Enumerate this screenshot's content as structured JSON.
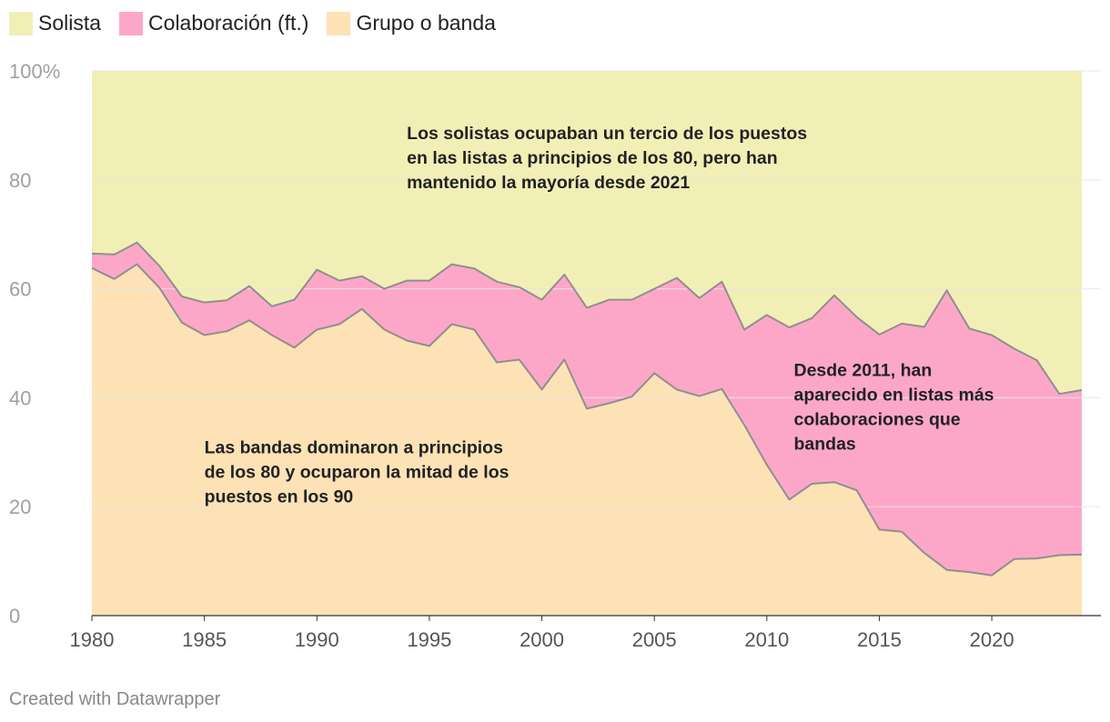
{
  "chart_data": {
    "type": "area",
    "stacked": true,
    "percent": true,
    "x": [
      1980,
      1981,
      1982,
      1983,
      1984,
      1985,
      1986,
      1987,
      1988,
      1989,
      1990,
      1991,
      1992,
      1993,
      1994,
      1995,
      1996,
      1997,
      1998,
      1999,
      2000,
      2001,
      2002,
      2003,
      2004,
      2005,
      2006,
      2007,
      2008,
      2009,
      2010,
      2011,
      2012,
      2013,
      2014,
      2015,
      2016,
      2017,
      2018,
      2019,
      2020,
      2021,
      2022,
      2023,
      2024
    ],
    "series": [
      {
        "name": "Grupo o banda",
        "color": "#fde2b6",
        "values": [
          63.8,
          61.8,
          64.5,
          60.2,
          53.8,
          51.5,
          52.2,
          54.2,
          51.5,
          49.2,
          52.5,
          53.5,
          56.3,
          52.5,
          50.5,
          49.5,
          53.5,
          52.5,
          46.5,
          47.0,
          41.5,
          47.0,
          38.0,
          39.0,
          40.2,
          44.5,
          41.5,
          40.3,
          41.6,
          35.0,
          27.7,
          21.3,
          24.2,
          24.5,
          23.0,
          15.8,
          15.4,
          11.5,
          8.4,
          8.0,
          7.4,
          10.4,
          10.5,
          11.1,
          11.2
        ]
      },
      {
        "name": "Colaboración (ft.)",
        "color": "#fda7c8",
        "values": [
          2.7,
          4.5,
          4.0,
          4.0,
          4.8,
          6.0,
          5.7,
          6.3,
          5.3,
          8.8,
          11.0,
          8.0,
          6.0,
          7.5,
          11.0,
          12.0,
          11.0,
          11.2,
          14.8,
          13.3,
          16.5,
          15.6,
          18.5,
          19.0,
          17.8,
          15.5,
          20.5,
          18.0,
          19.7,
          17.5,
          27.5,
          31.6,
          30.4,
          34.3,
          31.8,
          35.8,
          38.2,
          41.5,
          51.3,
          44.7,
          44.1,
          38.6,
          36.4,
          29.6,
          30.2
        ]
      },
      {
        "name": "Solista",
        "color": "#f2efb6",
        "values": [
          33.5,
          33.7,
          31.5,
          35.8,
          41.4,
          42.5,
          42.1,
          39.5,
          43.2,
          42.0,
          36.5,
          38.5,
          37.7,
          40.0,
          38.5,
          38.5,
          35.5,
          36.3,
          38.7,
          39.7,
          42.0,
          37.4,
          43.5,
          42.0,
          42.0,
          40.0,
          38.0,
          41.7,
          38.7,
          47.5,
          44.8,
          47.1,
          45.4,
          41.2,
          45.2,
          48.4,
          46.4,
          47.0,
          40.3,
          47.3,
          48.5,
          51.0,
          53.1,
          59.3,
          58.6
        ]
      }
    ],
    "legend": [
      "Solista",
      "Colaboración (ft.)",
      "Grupo o banda"
    ],
    "ylim": [
      0,
      100
    ],
    "yticks": [
      0,
      20,
      40,
      60,
      80,
      100
    ],
    "ytick_labels": [
      "0",
      "20",
      "40",
      "60",
      "80",
      "100%"
    ],
    "xticks": [
      1980,
      1985,
      1990,
      1995,
      2000,
      2005,
      2010,
      2015,
      2020
    ],
    "xtick_labels": [
      "1980",
      "1985",
      "1990",
      "1995",
      "2000",
      "2005",
      "2010",
      "2015",
      "2020"
    ],
    "xlim": [
      1980,
      2024
    ],
    "annotations": [
      {
        "lines": [
          "Los solistas ocupaban un tercio de los puestos",
          "en las listas a principios de los 80, pero han",
          "mantenido la mayoría desde 2021"
        ],
        "x": 1994.0,
        "y": 87.5
      },
      {
        "lines": [
          "Las bandas dominaron a principios",
          "de los 80 y ocuparon la mitad de los",
          "puestos en los 90"
        ],
        "x": 1985.0,
        "y": 29.8
      },
      {
        "lines": [
          "Desde 2011, han",
          "aparecido en listas más",
          "colaboraciones que",
          "bandas"
        ],
        "x": 2011.2,
        "y": 44.0
      }
    ],
    "grid": true
  },
  "footer": {
    "credit": "Created with Datawrapper"
  },
  "colors": {
    "grid": "#e5e5e5",
    "axis_text": "#a0a0a0",
    "stroke": "#8f8f8f",
    "annotation_text": "#222222"
  }
}
